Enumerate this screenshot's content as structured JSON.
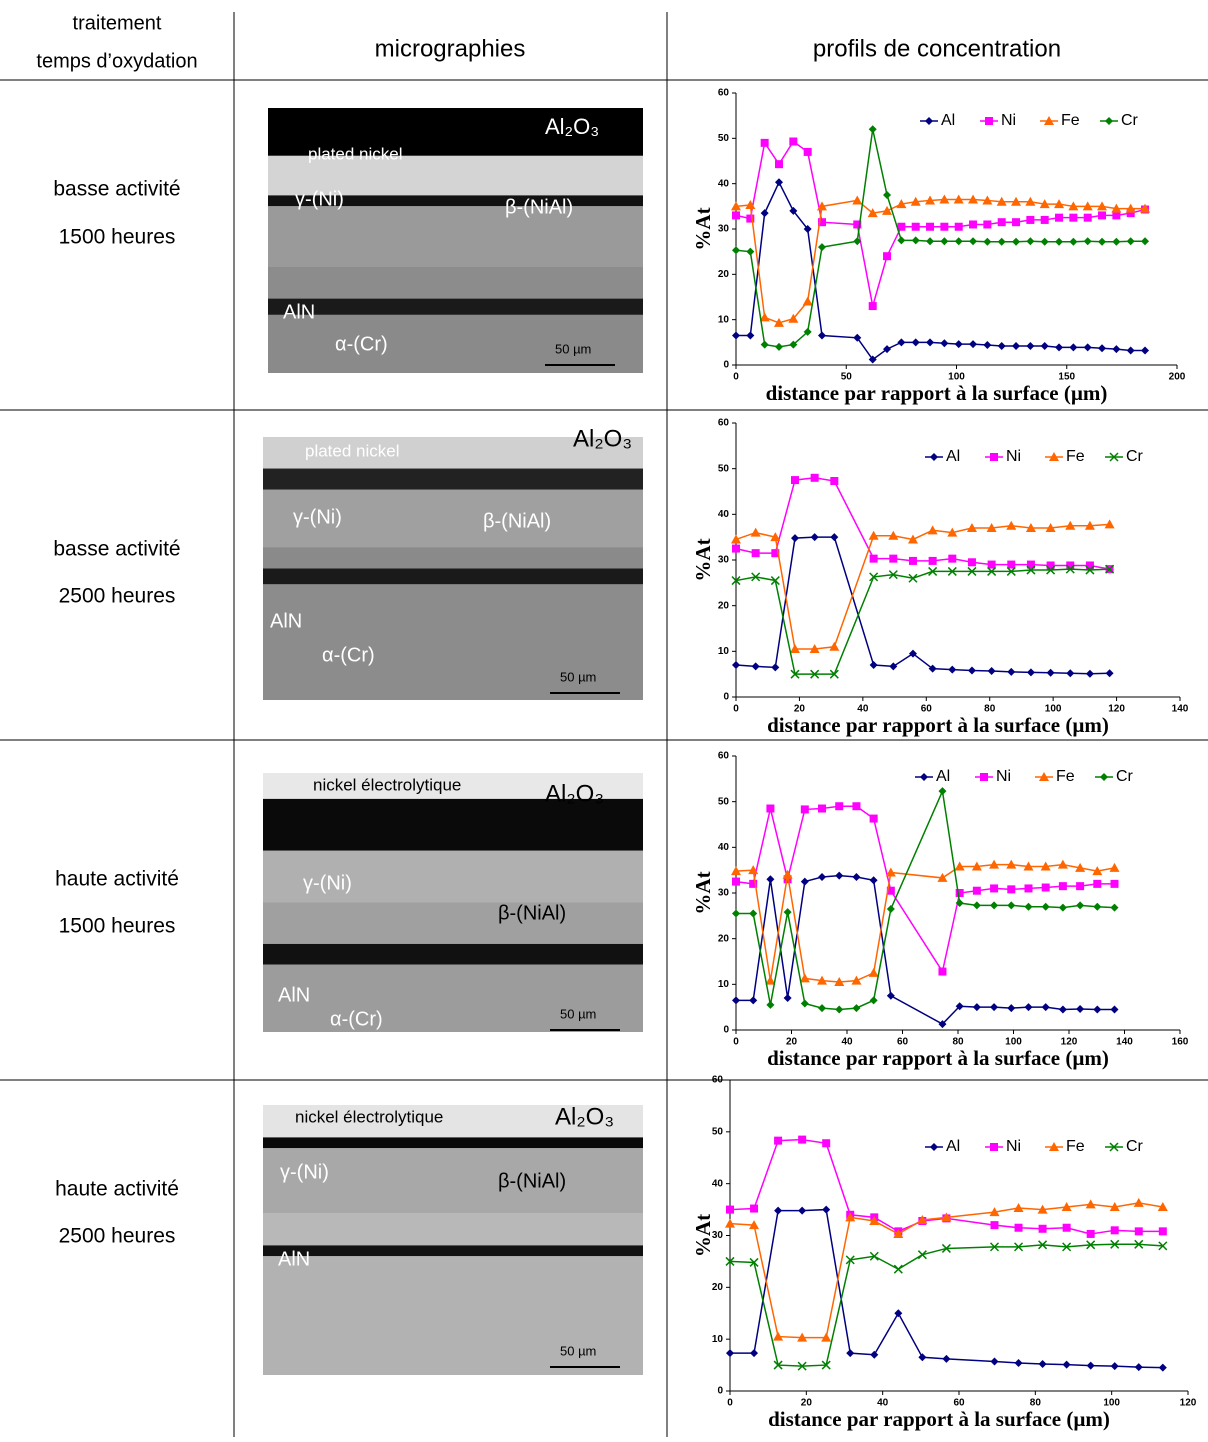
{
  "header": {
    "treatment": [
      "traitement",
      "temps d’oxydation"
    ],
    "micrographs": "micrographies",
    "profiles": "profils de concentration"
  },
  "rows": [
    {
      "treatment": [
        "basse activité",
        "1500 heures"
      ],
      "micrograph": {
        "al2o3": "Al₂O₃",
        "nickel": "plated nickel",
        "gamma": "γ-(Ni)",
        "beta": "β-(NiAl)",
        "aln": "AlN",
        "alpha": "α-(Cr)",
        "scale": "50 µm"
      }
    },
    {
      "treatment": [
        "basse activité",
        "2500 heures"
      ],
      "micrograph": {
        "al2o3": "Al₂O₃",
        "nickel": "plated nickel",
        "gamma": "γ-(Ni)",
        "beta": "β-(NiAl)",
        "aln": "AlN",
        "alpha": "α-(Cr)",
        "scale": "50 µm"
      }
    },
    {
      "treatment": [
        "haute activité",
        "1500 heures"
      ],
      "micrograph": {
        "al2o3": "Al₂O₃",
        "nickel": "nickel électrolytique",
        "gamma": "γ-(Ni)",
        "beta": "β-(NiAl)",
        "aln": "AlN",
        "alpha": "α-(Cr)",
        "scale": "50 µm"
      }
    },
    {
      "treatment": [
        "haute activité",
        "2500 heures"
      ],
      "micrograph": {
        "al2o3": "Al₂O₃",
        "nickel": "nickel électrolytique",
        "gamma": "γ-(Ni)",
        "beta": "β-(NiAl)",
        "aln": "AlN",
        "scale": "50 µm"
      }
    }
  ],
  "chart_data": [
    {
      "type": "line",
      "x_label": "distance par rapport à la surface (µm)",
      "y_label": "%At",
      "xlim": [
        0,
        200
      ],
      "xticks": [
        0,
        50,
        100,
        150,
        200
      ],
      "ylim": [
        0,
        60
      ],
      "yticks": [
        0,
        10,
        20,
        30,
        40,
        50,
        60
      ],
      "legend": "upper right",
      "x": [
        0,
        6.5,
        13,
        19.5,
        26,
        32.5,
        39,
        55,
        62,
        68.5,
        75,
        81.5,
        88,
        94.5,
        101,
        107.5,
        114,
        120.5,
        127,
        133.5,
        140,
        146.5,
        153,
        159.5,
        166,
        172.5,
        179,
        185.5
      ],
      "series": [
        {
          "name": "Al",
          "color": "#000080",
          "marker": "diamond",
          "values": [
            6.5,
            6.5,
            33.5,
            40.3,
            34,
            30,
            6.5,
            6,
            1.2,
            3.5,
            5,
            5,
            5,
            4.8,
            4.6,
            4.6,
            4.4,
            4.2,
            4.2,
            4.2,
            4.2,
            3.9,
            3.9,
            3.9,
            3.7,
            3.5,
            3.2,
            3.2
          ]
        },
        {
          "name": "Ni",
          "color": "#ff00ff",
          "marker": "square",
          "values": [
            33,
            32.3,
            49,
            44.3,
            49.3,
            47,
            31.5,
            31,
            13,
            24,
            30.5,
            30.5,
            30.5,
            30.5,
            30.5,
            31,
            31,
            31.5,
            31.5,
            32,
            32,
            32.5,
            32.5,
            32.5,
            33,
            33,
            33.5,
            34.3
          ]
        },
        {
          "name": "Fe",
          "color": "#ff6600",
          "marker": "triangle",
          "values": [
            35,
            35.3,
            10.5,
            9.3,
            10.2,
            14,
            35,
            36.3,
            33.5,
            34,
            35.5,
            36,
            36.3,
            36.5,
            36.5,
            36.5,
            36.3,
            36,
            36,
            36,
            35.5,
            35.5,
            35,
            35,
            35,
            34.5,
            34.5,
            34.5
          ]
        },
        {
          "name": "Cr",
          "color": "#008000",
          "marker": "diamond",
          "values": [
            25.3,
            25,
            4.5,
            4,
            4.5,
            7.3,
            26,
            27.3,
            52,
            37.5,
            27.5,
            27.5,
            27.3,
            27.3,
            27.3,
            27.3,
            27.2,
            27.2,
            27.2,
            27.3,
            27.2,
            27.2,
            27.2,
            27.3,
            27.2,
            27.2,
            27.3,
            27.3
          ]
        }
      ]
    },
    {
      "type": "line",
      "x_label": "distance par rapport à la surface (µm)",
      "y_label": "%At",
      "xlim": [
        0,
        140
      ],
      "xticks": [
        0,
        20,
        40,
        60,
        80,
        100,
        120,
        140
      ],
      "ylim": [
        0,
        60
      ],
      "yticks": [
        0,
        10,
        20,
        30,
        40,
        50,
        60
      ],
      "legend": "upper right",
      "x": [
        0,
        6.2,
        12.4,
        18.6,
        24.8,
        31,
        43.4,
        49.6,
        55.8,
        62,
        68.2,
        74.4,
        80.6,
        86.8,
        93,
        99.2,
        105.4,
        111.6,
        117.8
      ],
      "series": [
        {
          "name": "Al",
          "color": "#000080",
          "marker": "diamond",
          "values": [
            7,
            6.7,
            6.5,
            34.8,
            35,
            35,
            7,
            6.7,
            9.5,
            6.2,
            6,
            5.8,
            5.7,
            5.5,
            5.4,
            5.3,
            5.2,
            5.1,
            5.2
          ]
        },
        {
          "name": "Ni",
          "color": "#ff00ff",
          "marker": "square",
          "values": [
            32.5,
            31.5,
            31.5,
            47.5,
            48,
            47.3,
            30.3,
            30.3,
            29.8,
            29.8,
            30.3,
            29.5,
            29,
            29,
            29,
            28.8,
            28.8,
            28.8,
            28
          ]
        },
        {
          "name": "Fe",
          "color": "#ff6600",
          "marker": "triangle",
          "values": [
            34.5,
            36,
            35,
            10.5,
            10.5,
            11,
            35.3,
            35.3,
            34.5,
            36.5,
            36,
            37,
            37,
            37.5,
            37,
            37,
            37.5,
            37.5,
            37.8
          ]
        },
        {
          "name": "Cr",
          "color": "#008000",
          "marker": "x",
          "values": [
            25.5,
            26.3,
            25.5,
            5,
            5,
            5,
            26.3,
            26.8,
            26,
            27.5,
            27.5,
            27.5,
            27.5,
            27.5,
            27.8,
            27.8,
            28,
            27.8,
            28
          ]
        }
      ]
    },
    {
      "type": "line",
      "x_label": "distance par rapport à la surface (µm)",
      "y_label": "%At",
      "xlim": [
        0,
        160
      ],
      "xticks": [
        0,
        20,
        40,
        60,
        80,
        100,
        120,
        140,
        160
      ],
      "ylim": [
        0,
        60
      ],
      "yticks": [
        0,
        10,
        20,
        30,
        40,
        50,
        60
      ],
      "legend": "upper right",
      "x": [
        0,
        6.2,
        12.4,
        18.6,
        24.8,
        31,
        37.2,
        43.4,
        49.6,
        55.8,
        74.4,
        80.6,
        86.8,
        93,
        99.2,
        105.4,
        111.6,
        117.8,
        124,
        130.2,
        136.4
      ],
      "series": [
        {
          "name": "Al",
          "color": "#000080",
          "marker": "diamond",
          "values": [
            6.5,
            6.5,
            33,
            7,
            32.5,
            33.5,
            33.8,
            33.5,
            32.8,
            7.5,
            1.3,
            5.2,
            5,
            5,
            4.8,
            5,
            5,
            4.5,
            4.6,
            4.5,
            4.5
          ]
        },
        {
          "name": "Ni",
          "color": "#ff00ff",
          "marker": "square",
          "values": [
            32.5,
            32,
            48.5,
            33,
            48.3,
            48.5,
            49,
            49,
            46.3,
            30.5,
            12.8,
            30,
            30.5,
            31,
            30.8,
            31,
            31.2,
            31.5,
            31.5,
            32,
            32
          ]
        },
        {
          "name": "Fe",
          "color": "#ff6600",
          "marker": "triangle",
          "values": [
            34.8,
            35,
            10.8,
            34,
            11.3,
            10.8,
            10.5,
            10.8,
            12.5,
            34.5,
            33.3,
            35.8,
            35.8,
            36.2,
            36.2,
            35.8,
            35.8,
            36.2,
            35.5,
            34.8,
            35.5
          ]
        },
        {
          "name": "Cr",
          "color": "#008000",
          "marker": "diamond",
          "values": [
            25.5,
            25.5,
            5.5,
            25.8,
            5.8,
            4.8,
            4.5,
            4.8,
            6.5,
            26.5,
            52.3,
            27.8,
            27.3,
            27.3,
            27.3,
            27,
            27,
            26.8,
            27.3,
            27,
            26.8
          ]
        }
      ]
    },
    {
      "type": "line",
      "x_label": "distance par rapport à la surface (µm)",
      "y_label": "%At",
      "xlim": [
        0,
        120
      ],
      "xticks": [
        0,
        20,
        40,
        60,
        80,
        100,
        120
      ],
      "ylim": [
        0,
        60
      ],
      "yticks": [
        0,
        10,
        20,
        30,
        40,
        50,
        60
      ],
      "legend": "upper right",
      "x": [
        0,
        6.3,
        12.6,
        18.9,
        25.2,
        31.5,
        37.8,
        44.1,
        50.4,
        56.7,
        69.3,
        75.6,
        81.9,
        88.2,
        94.5,
        100.8,
        107.1,
        113.4
      ],
      "series": [
        {
          "name": "Al",
          "color": "#000080",
          "marker": "diamond",
          "values": [
            7.3,
            7.3,
            34.8,
            34.8,
            35,
            7.3,
            7,
            15,
            6.5,
            6.2,
            5.7,
            5.4,
            5.2,
            5.1,
            4.9,
            4.8,
            4.6,
            4.5
          ]
        },
        {
          "name": "Ni",
          "color": "#ff00ff",
          "marker": "square",
          "values": [
            35,
            35.2,
            48.3,
            48.5,
            47.8,
            34,
            33.5,
            30.8,
            32.8,
            33.3,
            32,
            31.5,
            31.3,
            31.5,
            30.3,
            31,
            30.8,
            30.8
          ]
        },
        {
          "name": "Fe",
          "color": "#ff6600",
          "marker": "triangle",
          "values": [
            32.3,
            32,
            10.5,
            10.3,
            10.3,
            33.5,
            32.8,
            30.3,
            33,
            33.5,
            34.5,
            35.3,
            35,
            35.5,
            36,
            35.5,
            36.3,
            35.5
          ]
        },
        {
          "name": "Cr",
          "color": "#008000",
          "marker": "x",
          "values": [
            25,
            24.8,
            5,
            4.8,
            5,
            25.3,
            26,
            23.5,
            26.3,
            27.5,
            27.8,
            27.8,
            28.2,
            27.8,
            28.2,
            28.3,
            28.3,
            28
          ]
        }
      ]
    }
  ]
}
